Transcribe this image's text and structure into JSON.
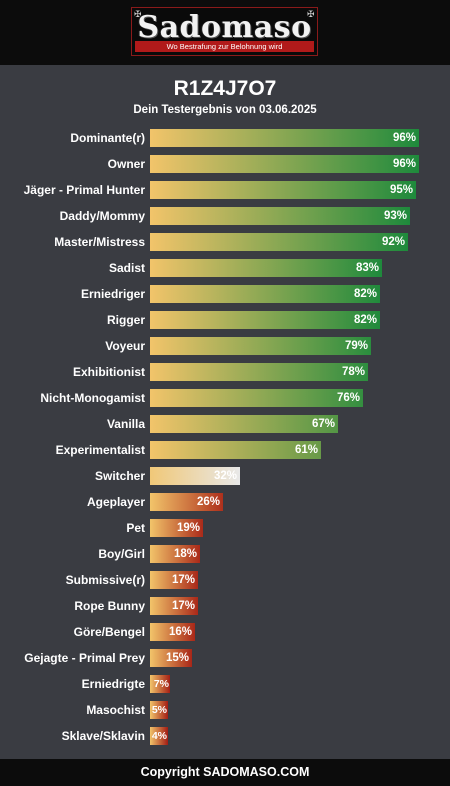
{
  "brand": {
    "logo_text": "Sadomaso",
    "tagline": "Wo Bestrafung zur Belohnung wird"
  },
  "result": {
    "code": "R1Z4J7O7",
    "subtitle": "Dein Testergebnis von 03.06.2025"
  },
  "colors": {
    "high_start": "#f2c46a",
    "high_end": "#1e8a3c",
    "low_end": "#a01812",
    "neutral_start": "#f0c878",
    "neutral_end": "#e8e8e8",
    "background": "#3a3c42",
    "header": "#0c0c0c"
  },
  "chart_data": {
    "type": "bar",
    "orientation": "horizontal",
    "title": "R1Z4J7O7",
    "subtitle": "Dein Testergebnis von 03.06.2025",
    "categories": [
      "Dominante(r)",
      "Owner",
      "Jäger - Primal Hunter",
      "Daddy/Mommy",
      "Master/Mistress",
      "Sadist",
      "Erniedriger",
      "Rigger",
      "Voyeur",
      "Exhibitionist",
      "Nicht-Monogamist",
      "Vanilla",
      "Experimentalist",
      "Switcher",
      "Ageplayer",
      "Pet",
      "Boy/Girl",
      "Submissive(r)",
      "Rope Bunny",
      "Göre/Bengel",
      "Gejagte - Primal Prey",
      "Erniedrigte",
      "Masochist",
      "Sklave/Sklavin"
    ],
    "values": [
      96,
      96,
      95,
      93,
      92,
      83,
      82,
      82,
      79,
      78,
      76,
      67,
      61,
      32,
      26,
      19,
      18,
      17,
      17,
      16,
      15,
      7,
      5,
      4
    ],
    "value_labels": [
      "96%",
      "96%",
      "95%",
      "93%",
      "92%",
      "83%",
      "82%",
      "82%",
      "79%",
      "78%",
      "76%",
      "67%",
      "61%",
      "32%",
      "26%",
      "19%",
      "18%",
      "17%",
      "17%",
      "16%",
      "15%",
      "7%",
      "5%",
      "4%"
    ],
    "xlim": [
      0,
      100
    ],
    "grid": false,
    "legend": "none"
  },
  "footer": {
    "copyright": "Copyright SADOMASO.COM"
  }
}
